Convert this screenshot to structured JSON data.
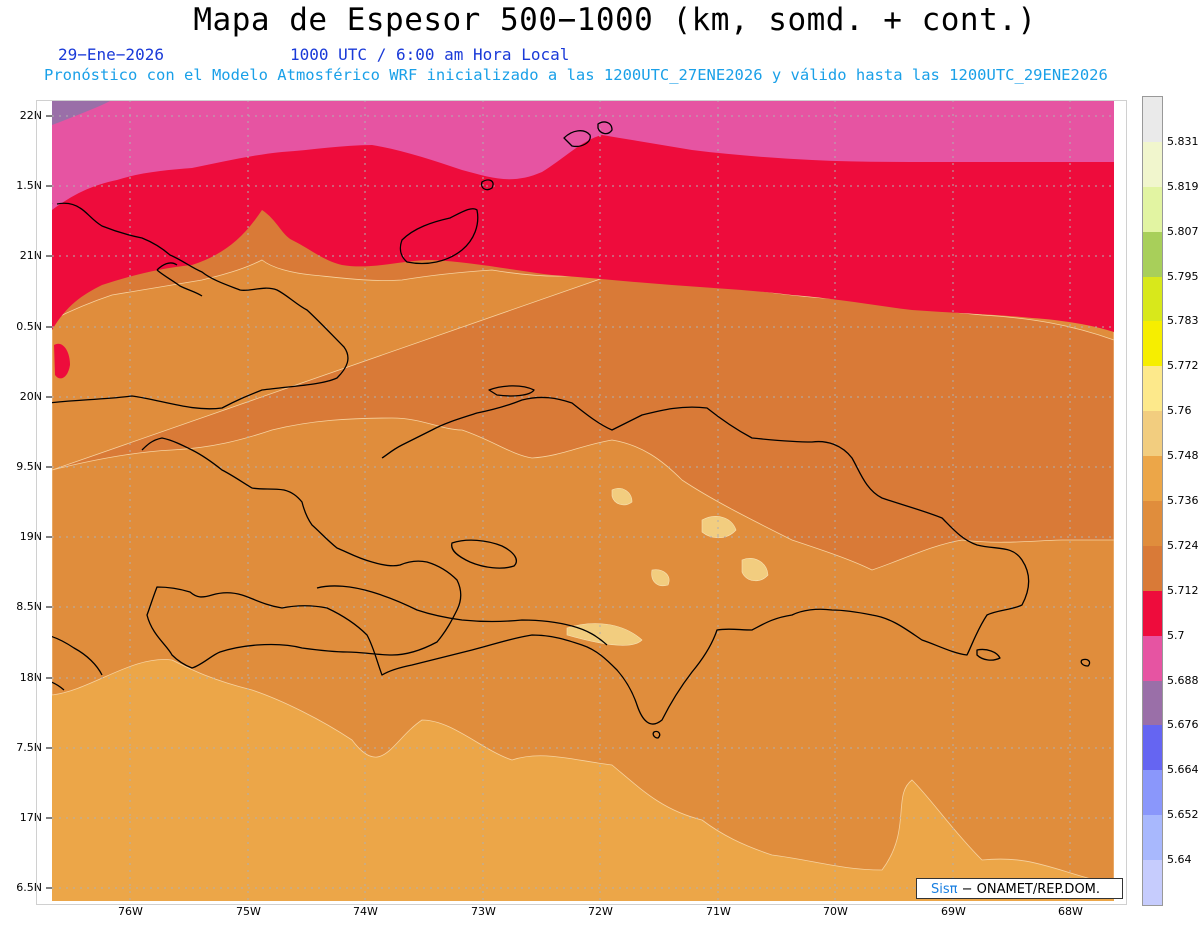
{
  "header": {
    "title": "Mapa de Espesor 500−1000 (km, somd. + cont.)",
    "date": "29−Ene−2026",
    "time": "1000 UTC / 6:00 am Hora Local",
    "info": "Pronóstico con el Modelo Atmosférico WRF inicializado a las 1200UTC_27ENE2026 y válido hasta las  1200UTC_29ENE2026"
  },
  "axes": {
    "y_labels": [
      "22N",
      "1.5N",
      "21N",
      "0.5N",
      "20N",
      "9.5N",
      "19N",
      "8.5N",
      "18N",
      "7.5N",
      "17N",
      "6.5N"
    ],
    "x_labels": [
      "76W",
      "75W",
      "74W",
      "73W",
      "72W",
      "71W",
      "70W",
      "69W",
      "68W"
    ]
  },
  "legend": {
    "labels": [
      "5.831",
      "5.819",
      "5.807",
      "5.795",
      "5.783",
      "5.772",
      "5.76",
      "5.748",
      "5.736",
      "5.724",
      "5.712",
      "5.7",
      "5.688",
      "5.676",
      "5.664",
      "5.652",
      "5.64"
    ],
    "colors": [
      "#eaeaea",
      "#f1f6cd",
      "#e2f4a2",
      "#a8cf5a",
      "#d8e81b",
      "#f6ee00",
      "#fde98b",
      "#f2cd7f",
      "#eca648",
      "#e08d3c",
      "#d97a37",
      "#ee0c3c",
      "#e654a2",
      "#9a6fa8",
      "#6565f2",
      "#8a97fb",
      "#a8b8fd",
      "#c6ccfd"
    ]
  },
  "credit": {
    "sis": "Sisπ",
    "rest": "− ONAMET/REP.DOM."
  },
  "colors": {
    "purple": "#9a6fa8",
    "pink": "#e654a2",
    "red": "#ee0c3c",
    "dark_orange": "#d97a37",
    "orange": "#e08d3c",
    "light_orange": "#eca648",
    "tan": "#f2cd7f"
  }
}
